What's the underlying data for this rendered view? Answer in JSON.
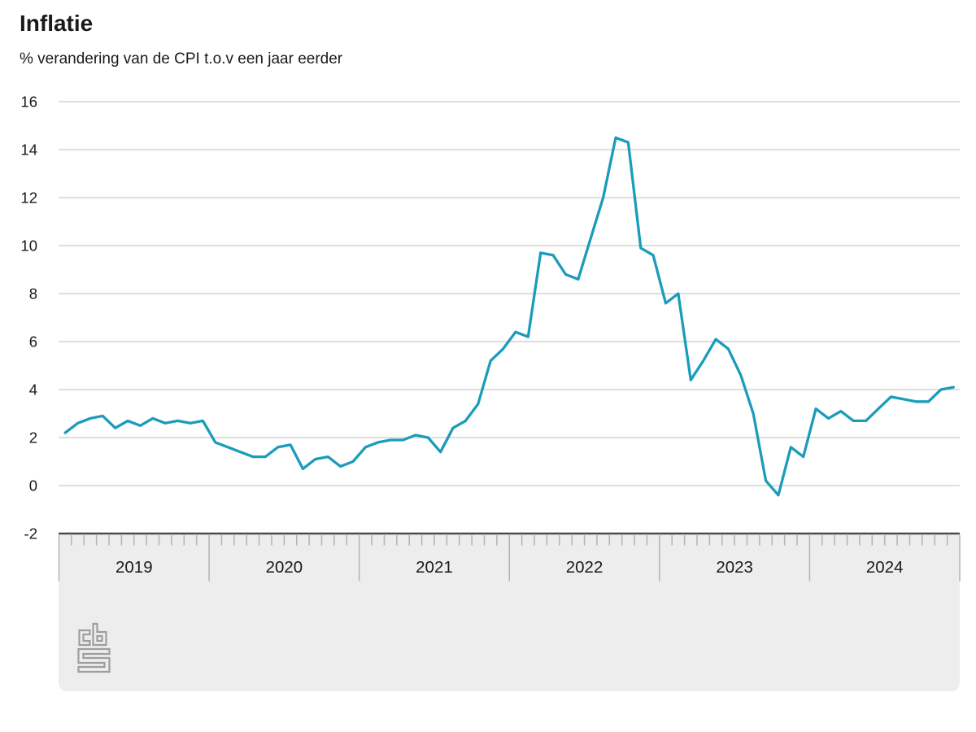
{
  "header": {
    "title": "Inflatie",
    "subtitle": "% verandering van de CPI t.o.v een jaar eerder"
  },
  "chart_data": {
    "type": "line",
    "title": "Inflatie",
    "subtitle_unit": "% verandering van de CPI t.o.v een jaar eerder",
    "ylim": [
      -2,
      16
    ],
    "yticks": [
      16,
      14,
      12,
      10,
      8,
      6,
      4,
      2,
      0,
      -2
    ],
    "grid": true,
    "legend_position": "none",
    "x_axis_style": "month-ruler-with-year-labels",
    "years": [
      "2019",
      "2020",
      "2021",
      "2022",
      "2023",
      "2024"
    ],
    "series": [
      {
        "name": "CPI % verandering t.o.v een jaar eerder",
        "frequency": "monthly",
        "values_by_year": {
          "2019": [
            2.2,
            2.6,
            2.8,
            2.9,
            2.4,
            2.7,
            2.5,
            2.8,
            2.6,
            2.7,
            2.6,
            2.7
          ],
          "2020": [
            1.8,
            1.6,
            1.4,
            1.2,
            1.2,
            1.6,
            1.7,
            0.7,
            1.1,
            1.2,
            0.8,
            1.0
          ],
          "2021": [
            1.6,
            1.8,
            1.9,
            1.9,
            2.1,
            2.0,
            1.4,
            2.4,
            2.7,
            3.4,
            5.2,
            5.7
          ],
          "2022": [
            6.4,
            6.2,
            9.7,
            9.6,
            8.8,
            8.6,
            10.3,
            12.0,
            14.5,
            14.3,
            9.9,
            9.6
          ],
          "2023": [
            7.6,
            8.0,
            4.4,
            5.2,
            6.1,
            5.7,
            4.6,
            3.0,
            0.2,
            -0.4,
            1.6,
            1.2
          ],
          "2024": [
            3.2,
            2.8,
            3.1,
            2.7,
            2.7,
            3.2,
            3.7,
            3.6,
            3.5,
            3.5,
            4.0,
            4.1
          ]
        }
      }
    ]
  },
  "branding": {
    "logo_icon": "cbs-logo"
  },
  "colors": {
    "line": "#1b9cba",
    "grid": "#c9c9c9",
    "axis": "#4a4a4a",
    "panel": "#ededed",
    "tick": "#b3b3b3",
    "logo": "#9e9e9e",
    "text": "#1a1a1a"
  }
}
